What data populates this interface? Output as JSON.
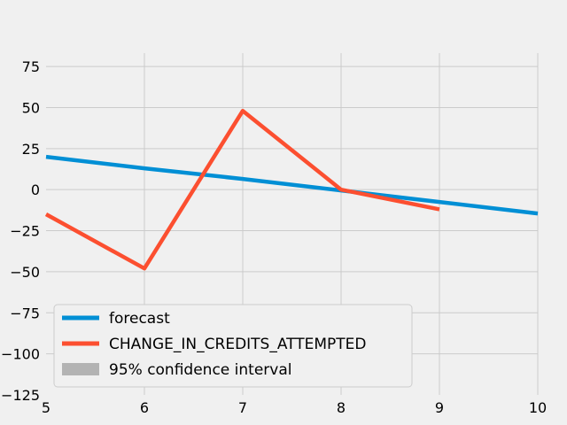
{
  "chart_data": {
    "type": "line",
    "title": "",
    "xlabel": "",
    "ylabel": "",
    "xlim": [
      5,
      10
    ],
    "ylim": [
      -125,
      95
    ],
    "x_ticks": [
      5,
      6,
      7,
      8,
      9,
      10
    ],
    "y_ticks": [
      -125,
      -100,
      -75,
      -50,
      -25,
      0,
      25,
      50,
      75
    ],
    "x_tick_labels": [
      "5",
      "6",
      "7",
      "8",
      "9",
      "10"
    ],
    "y_tick_labels": [
      "−125",
      "−100",
      "−75",
      "−50",
      "−25",
      "0",
      "25",
      "50",
      "75"
    ],
    "grid": true,
    "legend_position": "lower-left",
    "series": [
      {
        "name": "forecast",
        "color": "#008fd5",
        "x": [
          5,
          6,
          7,
          8,
          9,
          10
        ],
        "y": [
          20,
          13,
          6.5,
          -0.5,
          -7.5,
          -14.5
        ]
      },
      {
        "name": "CHANGE_IN_CREDITS_ATTEMPTED",
        "color": "#fc4f30",
        "x": [
          5,
          6,
          7,
          8,
          9
        ],
        "y": [
          -15,
          -48,
          48,
          0,
          -12
        ]
      }
    ],
    "confidence_interval": {
      "name": "95% confidence interval",
      "color": "#b3b3b3"
    }
  }
}
